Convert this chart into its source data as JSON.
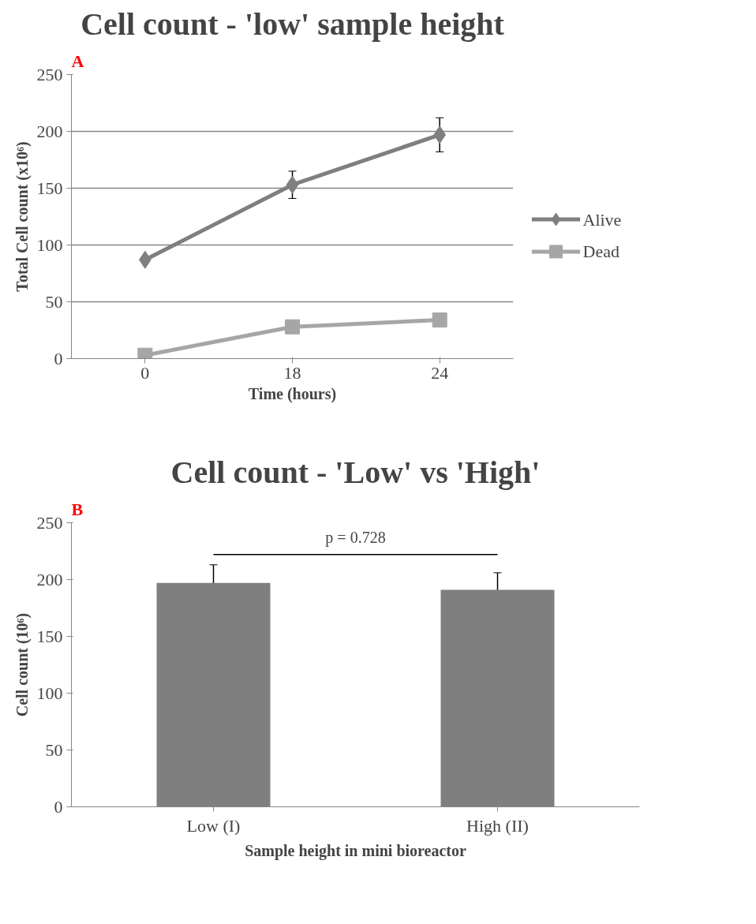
{
  "chart_data": [
    {
      "type": "line",
      "title": "Cell count - 'low' sample height",
      "xlabel": "Time (hours)",
      "ylabel": "Total Cell count (x10⁶)",
      "annotations": [
        "A"
      ],
      "categories": [
        "0",
        "18",
        "24"
      ],
      "series": [
        {
          "name": "Alive",
          "color": "#7f7f7f",
          "marker": "diamond",
          "values": [
            87,
            153,
            197
          ],
          "errors": [
            null,
            12,
            15
          ]
        },
        {
          "name": "Dead",
          "color": "#a6a6a6",
          "marker": "square",
          "values": [
            3,
            28,
            34
          ]
        }
      ],
      "ylim": [
        0,
        250
      ],
      "yticks": [
        0,
        50,
        100,
        150,
        200,
        250
      ],
      "grid": "y",
      "legend": "right"
    },
    {
      "type": "bar",
      "title": "Cell count - 'Low' vs 'High'",
      "xlabel": "Sample height in mini bioreactor",
      "ylabel": "Cell count (10⁶)",
      "annotations": [
        "B",
        "p = 0.728"
      ],
      "categories": [
        "Low (I)",
        "High (II)"
      ],
      "values": [
        197,
        191
      ],
      "errors": [
        16,
        15
      ],
      "color": "#7f7f7f",
      "ylim": [
        0,
        250
      ],
      "yticks": [
        0,
        50,
        100,
        150,
        200,
        250
      ]
    }
  ]
}
